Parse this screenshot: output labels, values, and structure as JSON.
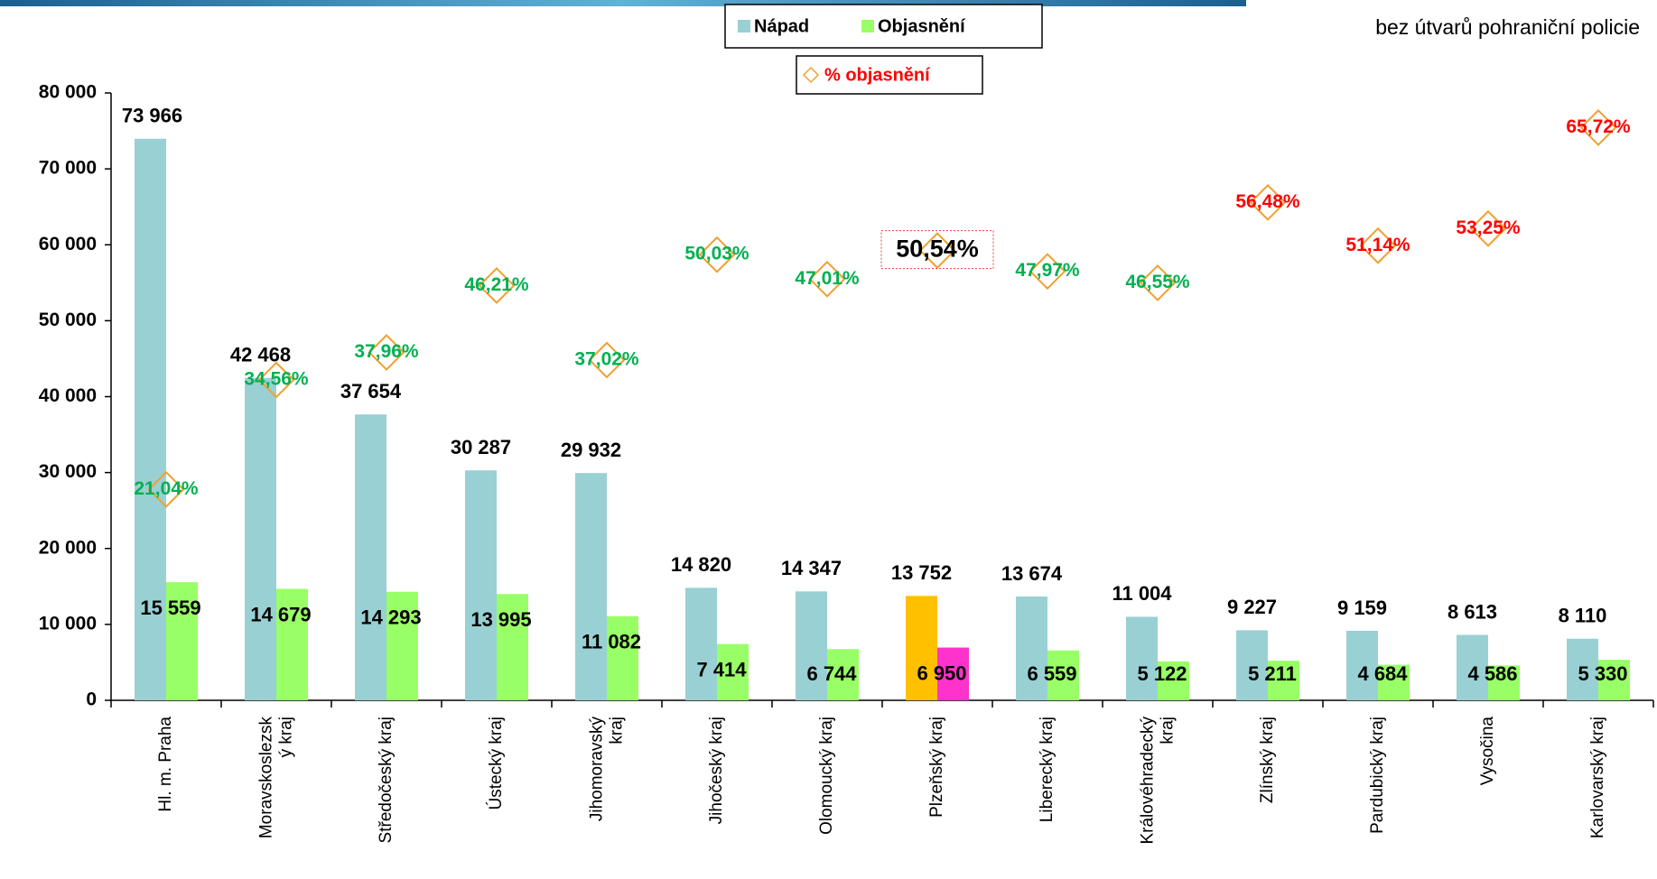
{
  "chart_data": {
    "type": "bar",
    "annotation": "bez útvarů pohraniční policie",
    "categories": [
      "Hl. m. Praha",
      "Moravskoslezsk\ný kraj",
      "Středočeský kraj",
      "Ústecký kraj",
      "Jihomoravský\nkraj",
      "Jihočeský kraj",
      "Olomoucký kraj",
      "Plzeňský kraj",
      "Liberecký kraj",
      "Královéhradecký\nkraj",
      "Zlínský kraj",
      "Pardubický kraj",
      "Vysočina",
      "Karlovarský kraj"
    ],
    "series": [
      {
        "name": "Nápad",
        "color": "#99d0d3",
        "colors": [
          "#99d0d3",
          "#99d0d3",
          "#99d0d3",
          "#99d0d3",
          "#99d0d3",
          "#99d0d3",
          "#99d0d3",
          "#ffc000",
          "#99d0d3",
          "#99d0d3",
          "#99d0d3",
          "#99d0d3",
          "#99d0d3",
          "#99d0d3"
        ],
        "values": [
          73966,
          42468,
          37654,
          30287,
          29932,
          14820,
          14347,
          13752,
          13674,
          11004,
          9227,
          9159,
          8613,
          8110
        ],
        "value_labels": [
          "73 966",
          "42 468",
          "37 654",
          "30 287",
          "29 932",
          "14 820",
          "14 347",
          "13 752",
          "13 674",
          "11 004",
          "9 227",
          "9 159",
          "8 613",
          "8 110"
        ]
      },
      {
        "name": "Objasnění",
        "color": "#99ff66",
        "colors": [
          "#99ff66",
          "#99ff66",
          "#99ff66",
          "#99ff66",
          "#99ff66",
          "#99ff66",
          "#99ff66",
          "#ff33cc",
          "#99ff66",
          "#99ff66",
          "#99ff66",
          "#99ff66",
          "#99ff66",
          "#99ff66"
        ],
        "values": [
          15559,
          14679,
          14293,
          13995,
          11082,
          7414,
          6744,
          6950,
          6559,
          5122,
          5211,
          4684,
          4586,
          5330
        ],
        "value_labels": [
          "15 559",
          "14 679",
          "14 293",
          "13 995",
          "11 082",
          "7 414",
          "6 744",
          "6 950",
          "6 559",
          "5 122",
          "5 211",
          "4 684",
          "4 586",
          "5 330"
        ]
      },
      {
        "name": "% objasnění",
        "color": "#f0a030",
        "axis": "y2",
        "marker": "diamond",
        "label_colors": [
          "#00b050",
          "#00b050",
          "#00b050",
          "#00b050",
          "#00b050",
          "#00b050",
          "#00b050",
          "#000000",
          "#00b050",
          "#00b050",
          "#ff0000",
          "#ff0000",
          "#ff0000",
          "#ff0000"
        ],
        "values": [
          21.04,
          34.56,
          37.96,
          46.21,
          37.02,
          50.03,
          47.01,
          50.54,
          47.97,
          46.55,
          56.48,
          51.14,
          53.25,
          65.72
        ],
        "value_labels": [
          "21,04%",
          "34,56%",
          "37,96%",
          "46,21%",
          "37,02%",
          "50,03%",
          "47,01%",
          "50,54%",
          "47,97%",
          "46,55%",
          "56,48%",
          "51,14%",
          "53,25%",
          "65,72%"
        ]
      }
    ],
    "ylim": [
      0,
      80000
    ],
    "yticks": [
      0,
      {
        "value": 10000,
        "label": "10 000"
      },
      {
        "value": 20000,
        "label": "20 000"
      },
      {
        "value": 30000,
        "label": "30 000"
      },
      {
        "value": 40000,
        "label": "40 000"
      },
      {
        "value": 50000,
        "label": "50 000"
      },
      {
        "value": 60000,
        "label": "60 000"
      },
      {
        "value": 70000,
        "label": "70 000"
      },
      {
        "value": 80000,
        "label": "80 000"
      }
    ],
    "y2lim": [
      -5,
      70
    ]
  }
}
